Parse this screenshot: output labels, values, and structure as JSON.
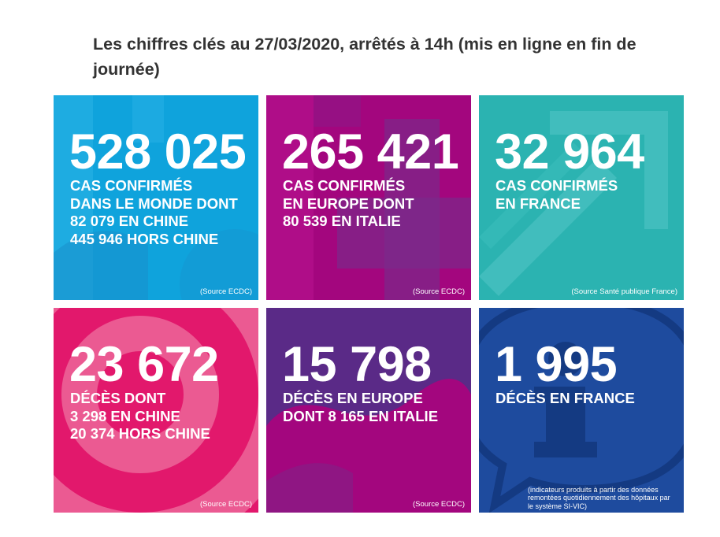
{
  "title": "Les chiffres clés au 27/03/2020, arrêtés à 14h (mis en ligne en fin de journée)",
  "tiles": [
    {
      "number": "528 025",
      "lines": [
        "CAS CONFIRMÉS",
        "DANS LE MONDE DONT",
        "82 079 EN CHINE",
        "445 946 HORS CHINE"
      ],
      "source": "(Source ECDC)",
      "color": "#0fa3dc"
    },
    {
      "number": "265 421",
      "lines": [
        "CAS CONFIRMÉS",
        "EN EUROPE DONT",
        "80 539 EN ITALIE"
      ],
      "source": "(Source ECDC)",
      "color": "#a3067e"
    },
    {
      "number": "32 964",
      "lines": [
        "CAS CONFIRMÉS",
        "EN FRANCE"
      ],
      "source": "(Source Santé publique France)",
      "color": "#2bb3b1"
    },
    {
      "number": "23 672",
      "lines": [
        "DÉCÈS DONT",
        "3 298 EN CHINE",
        "20 374 HORS CHINE"
      ],
      "source": "(Source ECDC)",
      "color": "#e2186c"
    },
    {
      "number": "15 798",
      "lines": [
        "DÉCÈS EN EUROPE",
        "DONT 8 165 EN ITALIE"
      ],
      "source": "(Source ECDC)",
      "color": "#5a2a87"
    },
    {
      "number": "1 995",
      "lines": [
        "DÉCÈS EN FRANCE"
      ],
      "source": "(indicateurs produits à partir des données remontées quotidiennement des hôpitaux par le système SI-VIC)",
      "color": "#1e4b9e"
    }
  ]
}
